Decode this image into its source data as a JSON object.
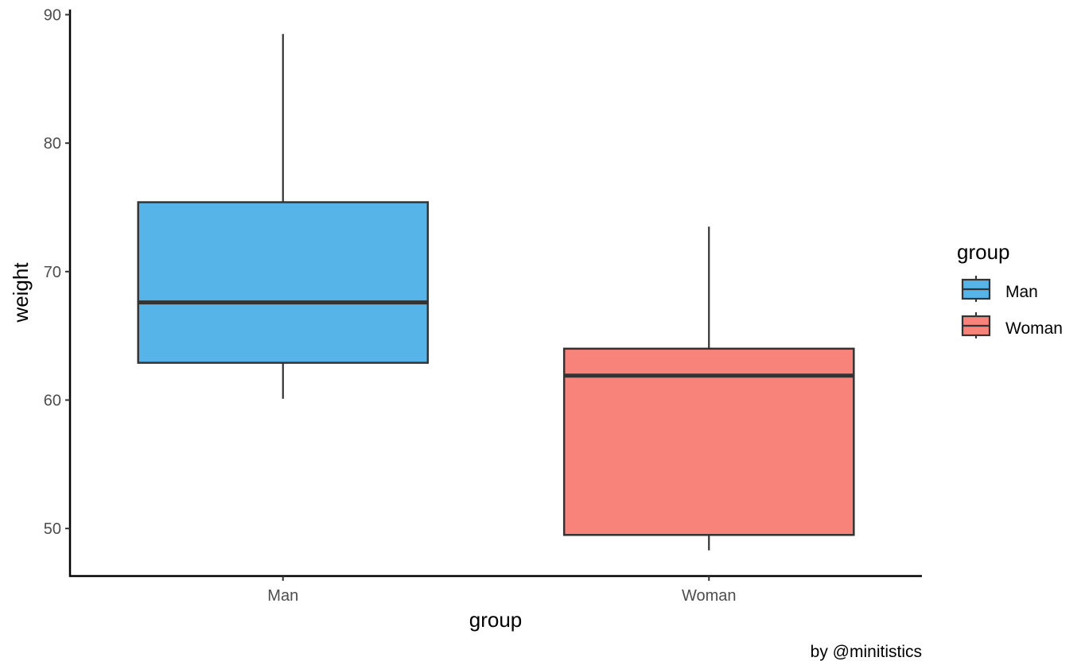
{
  "chart_data": {
    "type": "boxplot",
    "categories": [
      "Man",
      "Woman"
    ],
    "series": [
      {
        "name": "Man",
        "color": "#56B4E9",
        "box": {
          "whisker_low": 60.1,
          "q1": 62.9,
          "median": 67.6,
          "q3": 75.4,
          "whisker_high": 88.5
        }
      },
      {
        "name": "Woman",
        "color": "#F8837B",
        "box": {
          "whisker_low": 48.3,
          "q1": 49.5,
          "median": 61.9,
          "q3": 64.0,
          "whisker_high": 73.5
        }
      }
    ],
    "xlabel": "group",
    "ylabel": "weight",
    "ylim": [
      46.3,
      90.4
    ],
    "yticks": [
      50,
      60,
      70,
      80,
      90
    ],
    "grid": false,
    "legend": {
      "title": "group",
      "position": "right",
      "entries": [
        "Man",
        "Woman"
      ]
    },
    "caption": "by @minitistics",
    "line_color": "#333333"
  }
}
